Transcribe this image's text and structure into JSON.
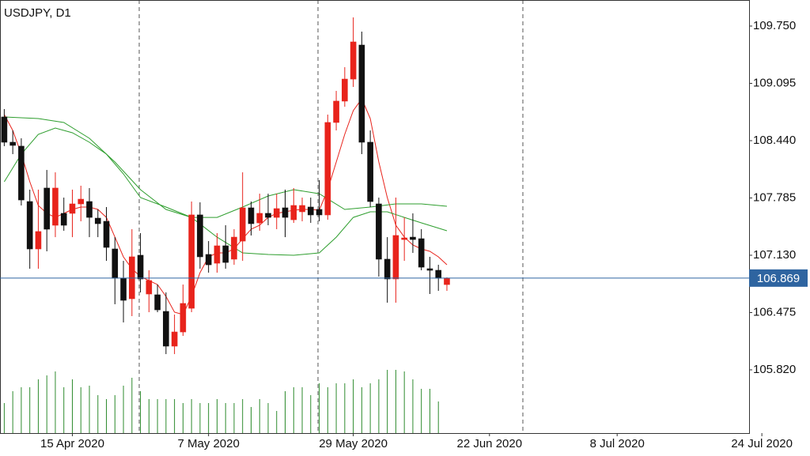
{
  "chart_data": {
    "type": "candlestick",
    "title": "USDJPY, D1",
    "open": [
      108.711,
      108.422,
      108.377,
      107.744,
      107.202,
      107.898,
      107.473,
      107.609,
      107.609,
      107.717,
      107.744,
      107.554,
      107.518,
      107.202,
      106.868,
      106.633,
      107.13,
      106.687,
      106.678,
      106.488,
      106.091,
      106.253,
      106.524,
      107.591,
      107.139,
      107.039,
      107.238,
      107.085,
      107.292,
      107.672,
      107.5,
      107.609,
      107.563,
      107.672,
      107.536,
      107.627,
      107.681,
      107.654,
      107.591,
      108.648,
      108.892,
      109.144,
      109.533,
      108.422,
      107.717,
      107.085,
      106.859,
      107.31,
      107.337,
      107.319,
      106.976,
      106.958,
      106.795
    ],
    "high": [
      108.801,
      108.557,
      108.467,
      107.88,
      107.88,
      108.105,
      108.078,
      107.789,
      107.88,
      107.925,
      107.898,
      107.654,
      107.681,
      107.337,
      107.066,
      107.428,
      107.383,
      106.958,
      106.795,
      106.705,
      106.452,
      106.795,
      107.744,
      107.735,
      107.292,
      107.383,
      107.473,
      107.428,
      108.078,
      107.744,
      107.834,
      107.834,
      107.834,
      107.88,
      107.898,
      107.789,
      107.789,
      107.988,
      108.738,
      109.009,
      109.28,
      109.849,
      109.687,
      108.557,
      107.789,
      107.337,
      107.789,
      107.563,
      107.609,
      107.428,
      107.112,
      107.021,
      106.878
    ],
    "low": [
      108.377,
      108.286,
      107.699,
      106.976,
      106.976,
      107.175,
      107.337,
      107.41,
      107.337,
      107.518,
      107.337,
      107.337,
      107.066,
      106.57,
      106.362,
      106.434,
      106.705,
      106.479,
      106.479,
      106.0,
      106.0,
      106.208,
      106.479,
      106.976,
      106.931,
      106.931,
      106.976,
      107.021,
      107.066,
      107.356,
      107.41,
      107.473,
      107.428,
      107.337,
      107.5,
      107.518,
      107.5,
      107.518,
      107.536,
      108.557,
      108.828,
      109.054,
      108.286,
      107.681,
      106.886,
      106.588,
      106.588,
      107.066,
      107.157,
      106.958,
      106.687,
      106.723,
      106.723
    ],
    "close": [
      108.422,
      108.386,
      107.762,
      107.202,
      107.401,
      107.428,
      107.898,
      107.473,
      107.717,
      107.771,
      107.563,
      107.491,
      107.22,
      106.868,
      106.615,
      107.112,
      106.859,
      106.841,
      106.506,
      106.091,
      106.253,
      106.579,
      107.591,
      107.112,
      107.021,
      107.238,
      107.048,
      107.337,
      107.672,
      107.491,
      107.609,
      107.563,
      107.663,
      107.563,
      107.699,
      107.699,
      107.591,
      107.591,
      108.648,
      108.892,
      109.144,
      109.569,
      108.422,
      107.744,
      107.085,
      106.859,
      107.356,
      107.328,
      107.31,
      106.994,
      106.958,
      106.868,
      106.869
    ],
    "up_color": "#e8231b",
    "down_color": "#111111",
    "volume": [
      38,
      53,
      58,
      58,
      68,
      73,
      78,
      58,
      68,
      58,
      60,
      48,
      43,
      48,
      60,
      70,
      53,
      43,
      43,
      43,
      43,
      38,
      43,
      38,
      38,
      43,
      38,
      38,
      43,
      33,
      43,
      38,
      28,
      53,
      58,
      58,
      48,
      63,
      58,
      63,
      63,
      68,
      58,
      63,
      68,
      80,
      80,
      78,
      68,
      56,
      56,
      40,
      null
    ],
    "volume_lim": [
      0,
      100
    ],
    "volume_color": "#2e8b2e",
    "lines": [
      {
        "color": "#e8231b",
        "x": [
          0,
          1,
          2,
          3,
          4,
          5,
          6,
          7,
          8,
          9,
          10,
          11,
          12,
          13,
          14,
          15,
          16,
          17,
          18,
          19,
          20,
          21,
          22,
          23,
          24,
          25,
          26,
          27,
          28,
          29,
          30,
          31,
          32,
          33,
          34,
          35,
          36,
          37,
          38,
          39,
          40,
          41,
          42,
          43,
          44,
          45,
          46,
          47,
          48,
          49,
          50,
          51,
          52
        ],
        "values": [
          108.738,
          108.557,
          108.286,
          107.97,
          107.699,
          107.609,
          107.563,
          107.609,
          107.654,
          107.681,
          107.681,
          107.654,
          107.563,
          107.337,
          107.112,
          106.976,
          106.886,
          106.841,
          106.795,
          106.66,
          106.479,
          106.452,
          106.66,
          106.931,
          107.112,
          107.157,
          107.157,
          107.202,
          107.319,
          107.428,
          107.473,
          107.563,
          107.609,
          107.627,
          107.645,
          107.654,
          107.654,
          107.645,
          107.88,
          108.196,
          108.512,
          108.783,
          108.919,
          108.693,
          108.196,
          107.789,
          107.473,
          107.337,
          107.247,
          107.202,
          107.175,
          107.112,
          107.021
        ]
      },
      {
        "color": "#2e9e2e",
        "x": [
          0,
          4,
          7,
          10,
          13,
          16,
          19,
          22,
          25,
          28,
          31,
          34,
          37,
          40,
          43,
          46,
          49,
          52
        ],
        "values": [
          108.711,
          108.693,
          108.648,
          108.467,
          108.196,
          107.88,
          107.654,
          107.563,
          107.563,
          107.681,
          107.807,
          107.88,
          107.834,
          107.654,
          107.681,
          107.717,
          107.717,
          107.69
        ]
      },
      {
        "color": "#2e9e2e",
        "x": [
          0,
          2,
          4,
          6,
          8,
          10,
          12,
          14,
          16,
          19,
          22,
          25,
          28,
          31,
          34,
          37,
          39,
          41,
          43,
          45,
          47,
          49,
          52
        ],
        "values": [
          107.97,
          108.286,
          108.512,
          108.584,
          108.53,
          108.422,
          108.286,
          108.06,
          107.789,
          107.681,
          107.563,
          107.337,
          107.157,
          107.139,
          107.13,
          107.157,
          107.337,
          107.563,
          107.627,
          107.627,
          107.563,
          107.5,
          107.41
        ]
      }
    ],
    "current_price": 106.869,
    "current_price_color": "#2e64a0",
    "ylim": [
      105.097,
      110.048
    ],
    "yticks": [
      {
        "value": 105.82,
        "label": "105.820"
      },
      106.475,
      {
        "value": 107.13,
        "label": "107.130"
      },
      107.785,
      {
        "value": 108.44,
        "label": "108.440"
      },
      109.095,
      {
        "value": 109.75,
        "label": "109.750"
      }
    ],
    "xlim": [
      -0.5,
      87.5
    ],
    "xticks": [
      {
        "value": 8,
        "label": "15 Apr 2020"
      },
      {
        "value": 24,
        "label": "7 May 2020"
      },
      {
        "value": 41,
        "label": "29 May 2020"
      },
      {
        "value": 57,
        "label": "22 Jun 2020"
      },
      {
        "value": 72,
        "label": "8 Jul 2020"
      },
      {
        "value": 89,
        "label": "24 Jul 2020"
      }
    ]
  }
}
